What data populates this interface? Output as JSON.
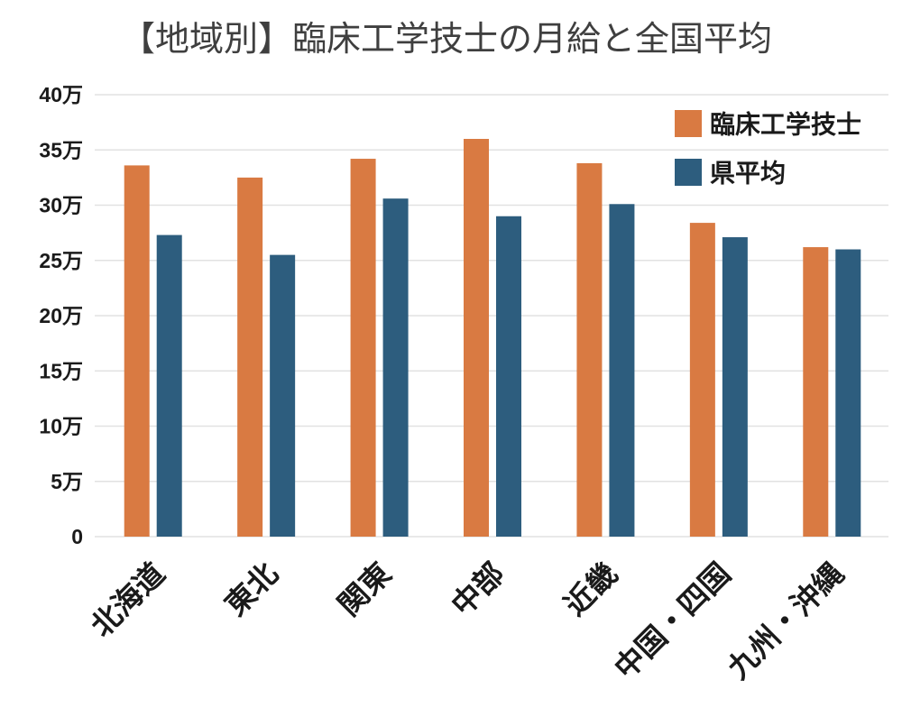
{
  "chart_data": {
    "type": "bar",
    "title": "【地域別】臨床工学技士の月給と全国平均",
    "categories": [
      "北海道",
      "東北",
      "関東",
      "中部",
      "近畿",
      "中国・四国",
      "九州・沖縄"
    ],
    "series": [
      {
        "name": "臨床工学技士",
        "color": "#D97A42",
        "values": [
          33.6,
          32.5,
          34.2,
          36.0,
          33.8,
          28.4,
          26.2
        ]
      },
      {
        "name": "県平均",
        "color": "#2D5D7E",
        "values": [
          27.3,
          25.5,
          30.6,
          29.0,
          30.1,
          27.1,
          26.0
        ]
      }
    ],
    "y_ticks": [
      {
        "value": 0,
        "label": "0"
      },
      {
        "value": 5,
        "label": "5万"
      },
      {
        "value": 10,
        "label": "10万"
      },
      {
        "value": 15,
        "label": "15万"
      },
      {
        "value": 20,
        "label": "20万"
      },
      {
        "value": 25,
        "label": "25万"
      },
      {
        "value": 30,
        "label": "30万"
      },
      {
        "value": 35,
        "label": "35万"
      },
      {
        "value": 40,
        "label": "40万"
      }
    ],
    "ylim": [
      0,
      40
    ],
    "grid": true,
    "legend_position": "top-right"
  }
}
